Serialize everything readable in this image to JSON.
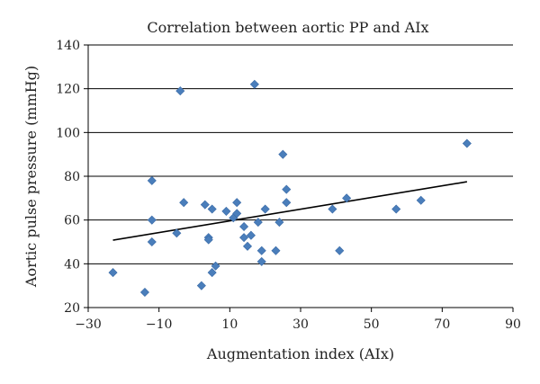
{
  "chart_data": {
    "type": "scatter",
    "title": "Correlation between aortic PP and AIx",
    "xlabel": "Augmentation index (AIx)",
    "ylabel": "Aortic pulse pressure (mmHg)",
    "xlim": [
      -30,
      90
    ],
    "ylim": [
      20,
      140
    ],
    "xticks": [
      -30,
      -10,
      10,
      30,
      50,
      70,
      90
    ],
    "yticks": [
      20,
      40,
      60,
      80,
      100,
      120,
      140
    ],
    "xtick_labels": [
      "−30",
      "−10",
      "10",
      "30",
      "50",
      "70",
      "90"
    ],
    "ytick_labels": [
      "20",
      "40",
      "60",
      "80",
      "100",
      "120",
      "140"
    ],
    "grid": "horizontal",
    "legend": "none",
    "marker": "diamond",
    "marker_color": "#4a7ebb",
    "trendline": {
      "x": [
        -23,
        77
      ],
      "y": [
        50.8,
        77.5
      ]
    },
    "points": [
      {
        "x": -23,
        "y": 36
      },
      {
        "x": -14,
        "y": 27
      },
      {
        "x": -12,
        "y": 78
      },
      {
        "x": -12,
        "y": 60
      },
      {
        "x": -12,
        "y": 50
      },
      {
        "x": -4,
        "y": 119
      },
      {
        "x": -3,
        "y": 68
      },
      {
        "x": -5,
        "y": 54
      },
      {
        "x": 3,
        "y": 67
      },
      {
        "x": 4,
        "y": 52
      },
      {
        "x": 4,
        "y": 51
      },
      {
        "x": 5,
        "y": 65
      },
      {
        "x": 6,
        "y": 39
      },
      {
        "x": 5,
        "y": 36
      },
      {
        "x": 2,
        "y": 30
      },
      {
        "x": 9,
        "y": 64
      },
      {
        "x": 11,
        "y": 61
      },
      {
        "x": 12,
        "y": 68
      },
      {
        "x": 12,
        "y": 63
      },
      {
        "x": 14,
        "y": 57
      },
      {
        "x": 14,
        "y": 52
      },
      {
        "x": 15,
        "y": 48
      },
      {
        "x": 16,
        "y": 53
      },
      {
        "x": 17,
        "y": 122
      },
      {
        "x": 18,
        "y": 59
      },
      {
        "x": 19,
        "y": 46
      },
      {
        "x": 19,
        "y": 41
      },
      {
        "x": 20,
        "y": 65
      },
      {
        "x": 23,
        "y": 46
      },
      {
        "x": 24,
        "y": 59
      },
      {
        "x": 25,
        "y": 90
      },
      {
        "x": 26,
        "y": 74
      },
      {
        "x": 26,
        "y": 68
      },
      {
        "x": 39,
        "y": 65
      },
      {
        "x": 41,
        "y": 46
      },
      {
        "x": 43,
        "y": 70
      },
      {
        "x": 57,
        "y": 65
      },
      {
        "x": 64,
        "y": 69
      },
      {
        "x": 77,
        "y": 95
      }
    ]
  }
}
